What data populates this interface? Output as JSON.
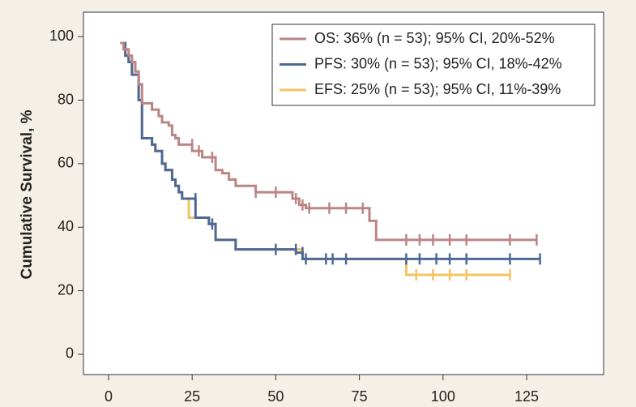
{
  "chart_data": {
    "type": "survival",
    "ylabel": "Cumulative Survival, %",
    "xlim": [
      -7.5,
      148
    ],
    "ylim": [
      -6.4,
      107.7
    ],
    "xticks": [
      0,
      25,
      50,
      75,
      100,
      125
    ],
    "yticks": [
      0,
      20,
      40,
      60,
      80,
      100
    ],
    "legend": "top-right",
    "series": [
      {
        "name": "EFS: 25% (n = 53); 95% CI, 11%-39%",
        "color": "#f2c462",
        "x": [
          3.5,
          5,
          6,
          7,
          9,
          10,
          13,
          14,
          16,
          17,
          19,
          20,
          21,
          22,
          24,
          30,
          32,
          38,
          58,
          89,
          120
        ],
        "values": [
          98,
          94,
          92,
          88,
          80,
          68,
          66,
          64,
          60,
          58,
          55,
          53,
          51,
          49,
          43,
          41,
          36,
          33,
          30,
          25,
          25
        ],
        "censor_x": [
          92,
          97,
          102,
          107,
          120
        ],
        "censor_values": [
          25,
          25,
          25,
          25,
          25
        ]
      },
      {
        "name": "PFS: 30% (n = 53); 95% CI, 18%-42%",
        "color": "#4d6994",
        "x": [
          3.5,
          5,
          6,
          7,
          9,
          10,
          13,
          14,
          16,
          17,
          19,
          20,
          21,
          22,
          26,
          30,
          32,
          38,
          56,
          58,
          129
        ],
        "values": [
          98,
          94,
          92,
          88,
          80,
          68,
          66,
          64,
          60,
          58,
          55,
          53,
          51,
          49,
          43,
          41,
          36,
          33,
          32,
          30,
          30
        ],
        "censor_x": [
          26,
          31,
          50,
          56,
          58,
          59,
          65,
          67,
          71,
          89,
          93,
          98,
          102,
          107,
          120,
          129
        ],
        "censor_values": [
          49,
          41,
          33,
          33,
          32,
          30,
          30,
          30,
          30,
          30,
          30,
          30,
          30,
          30,
          30,
          30
        ]
      },
      {
        "name": "OS: 36% (n = 53); 95% CI, 20%-52%",
        "color": "#bb8585",
        "x": [
          3.5,
          4.5,
          6,
          7,
          8,
          9,
          10,
          13,
          15,
          16,
          18,
          19,
          20,
          21,
          25,
          28,
          32,
          34,
          36,
          38,
          44,
          55,
          57,
          59,
          78,
          80,
          128
        ],
        "values": [
          98,
          96,
          94,
          92,
          89,
          85,
          79,
          77,
          75,
          73,
          72,
          69,
          68,
          66,
          64,
          62,
          58,
          57,
          55,
          53,
          51,
          49,
          47,
          46,
          42,
          36,
          36
        ],
        "censor_x": [
          25,
          27,
          31,
          44,
          50,
          56,
          58,
          60,
          66,
          71,
          76,
          89,
          93,
          97,
          102,
          107,
          120,
          128
        ],
        "censor_values": [
          66,
          64,
          62,
          51,
          51,
          49,
          47,
          46,
          46,
          46,
          46,
          36,
          36,
          36,
          36,
          36,
          36,
          36
        ]
      }
    ]
  }
}
